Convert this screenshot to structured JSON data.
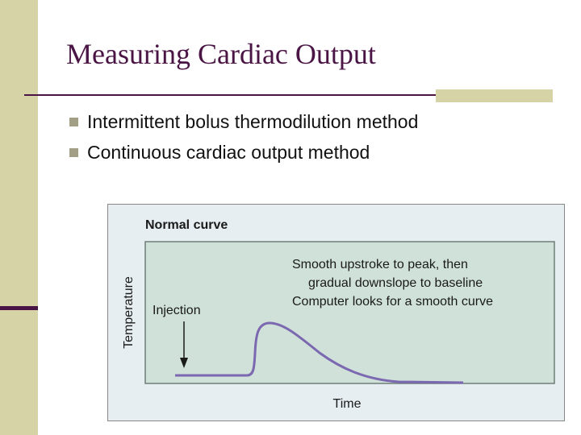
{
  "slide": {
    "title": "Measuring Cardiac Output",
    "bullets": [
      "Intermittent bolus thermodilution method",
      "Continuous cardiac output method"
    ]
  },
  "figure": {
    "heading": "Normal curve",
    "annotation_lines": [
      "Smooth upstroke to peak, then",
      "gradual downslope to baseline",
      "Computer looks for a smooth curve"
    ],
    "injection_label": "Injection",
    "x_axis_label": "Time",
    "y_axis_label": "Temperature",
    "colors": {
      "curve": "#7b68b0",
      "plot_background": "#cfe1d8",
      "figure_background": "#e6eef2",
      "title": "#4a1545",
      "accent": "#d6d3a6"
    }
  }
}
